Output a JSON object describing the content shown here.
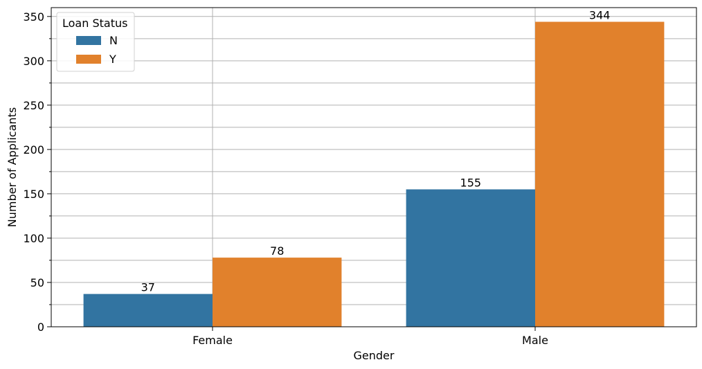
{
  "chart_data": {
    "type": "bar",
    "categories": [
      "Female",
      "Male"
    ],
    "series": [
      {
        "name": "N",
        "values": [
          37,
          155
        ],
        "color": "#3274a1"
      },
      {
        "name": "Y",
        "values": [
          78,
          344
        ],
        "color": "#e1812c"
      }
    ],
    "xlabel": "Gender",
    "ylabel": "Number of Applicants",
    "ylim": [
      0,
      360
    ],
    "yticks": [
      0,
      50,
      100,
      150,
      200,
      250,
      300,
      350
    ],
    "minor_yticks": [
      25,
      75,
      125,
      175,
      225,
      275,
      325
    ],
    "grid": true,
    "legend": {
      "title": "Loan Status",
      "placement": "top-left"
    }
  }
}
